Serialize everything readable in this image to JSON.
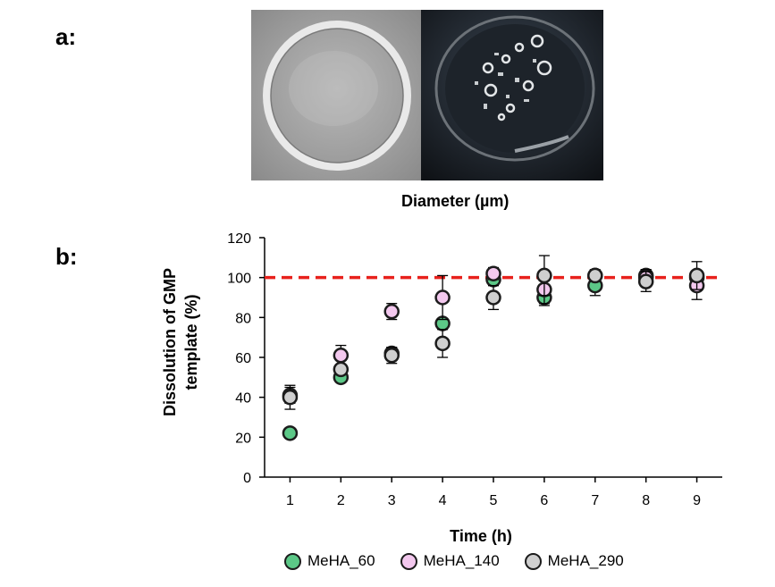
{
  "panels": {
    "a": "a:",
    "b": "b:"
  },
  "photo_caption": "Diameter (µm)",
  "chart_data": {
    "type": "scatter",
    "xlabel": "Time (h)",
    "ylabel_lines": [
      "Dissolution of GMP",
      "template (%)"
    ],
    "x_ticks": [
      1,
      2,
      3,
      4,
      5,
      6,
      7,
      8,
      9
    ],
    "y_ticks": [
      0,
      20,
      40,
      60,
      80,
      100,
      120
    ],
    "xlim": [
      0.5,
      9.5
    ],
    "ylim": [
      0,
      120
    ],
    "reference_line": {
      "y": 100,
      "color": "#e8211c",
      "style": "dashed"
    },
    "legend_position": "bottom",
    "series": [
      {
        "name": "MeHA_60",
        "color": "#5cc887",
        "x": [
          1,
          2,
          3,
          4,
          5,
          6,
          7,
          8,
          9
        ],
        "y": [
          22,
          50,
          62,
          77,
          99,
          90,
          96,
          101,
          100
        ],
        "err": [
          0,
          0,
          3,
          0,
          3,
          4,
          5,
          3,
          0
        ]
      },
      {
        "name": "MeHA_140",
        "color": "#f3c8ee",
        "x": [
          1,
          2,
          3,
          4,
          5,
          6,
          7,
          8,
          9
        ],
        "y": [
          41,
          61,
          83,
          90,
          102,
          94,
          101,
          100,
          96
        ],
        "err": [
          4,
          5,
          4,
          11,
          3,
          7,
          3,
          4,
          7
        ]
      },
      {
        "name": "MeHA_290",
        "color": "#cfcfcf",
        "x": [
          1,
          2,
          3,
          4,
          5,
          6,
          7,
          8,
          9
        ],
        "y": [
          40,
          54,
          61,
          67,
          90,
          101,
          101,
          98,
          101
        ],
        "err": [
          6,
          0,
          4,
          7,
          6,
          10,
          0,
          5,
          7
        ]
      }
    ]
  }
}
